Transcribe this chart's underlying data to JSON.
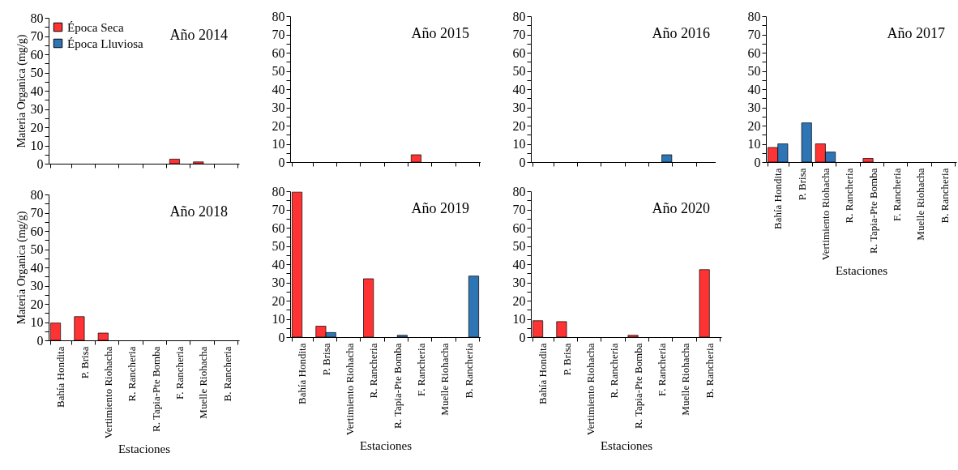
{
  "chart_data": [
    {
      "type": "bar",
      "title": "Año 2014",
      "ylabel": "Materia Organica (mg/g)",
      "tick_labels": "y",
      "legend": "top left",
      "categories": [
        null,
        null,
        null,
        null,
        null,
        null,
        null,
        null
      ],
      "series": [
        {
          "name": "Época Seca",
          "color": "#ff3333",
          "values": [
            null,
            null,
            null,
            null,
            null,
            2.5,
            1,
            null
          ]
        },
        {
          "name": "Época Lluviosa",
          "color": "#2e75b6",
          "values": [
            null,
            null,
            null,
            null,
            null,
            null,
            null,
            null
          ]
        }
      ],
      "ylim": [
        0,
        80
      ],
      "yticks": [
        0,
        {
          "value": 5,
          "label": null
        },
        10,
        {
          "value": 15,
          "label": null
        },
        20,
        {
          "value": 25,
          "label": null
        },
        30,
        {
          "value": 35,
          "label": null
        },
        40,
        {
          "value": 45,
          "label": null
        },
        50,
        {
          "value": 55,
          "label": null
        },
        60,
        {
          "value": 65,
          "label": null
        },
        70,
        {
          "value": 75,
          "label": null
        },
        80
      ]
    },
    {
      "type": "bar",
      "title": "Año 2015",
      "tick_labels": "y",
      "categories": [
        null,
        null,
        null,
        null,
        null,
        null,
        null,
        null
      ],
      "series": [
        {
          "color": "#ff3333",
          "values": [
            null,
            null,
            null,
            null,
            null,
            4,
            null,
            null
          ]
        },
        {
          "color": "#2e75b6",
          "values": [
            null,
            null,
            null,
            null,
            null,
            null,
            null,
            null
          ]
        }
      ],
      "ylim": [
        0,
        80
      ],
      "yticks": [
        0,
        {
          "value": 5,
          "label": null
        },
        10,
        {
          "value": 15,
          "label": null
        },
        20,
        {
          "value": 25,
          "label": null
        },
        30,
        {
          "value": 35,
          "label": null
        },
        40,
        {
          "value": 45,
          "label": null
        },
        50,
        {
          "value": 55,
          "label": null
        },
        60,
        {
          "value": 65,
          "label": null
        },
        70,
        {
          "value": 75,
          "label": null
        },
        80
      ]
    },
    {
      "type": "bar",
      "title": "Año 2016",
      "tick_labels": "y",
      "categories": [
        null,
        null,
        null,
        null,
        null,
        null,
        null,
        null
      ],
      "series": [
        {
          "color": "#ff3333",
          "values": [
            null,
            null,
            null,
            null,
            null,
            null,
            null,
            null
          ]
        },
        {
          "color": "#2e75b6",
          "values": [
            null,
            null,
            null,
            null,
            null,
            4,
            null,
            null
          ]
        }
      ],
      "ylim": [
        0,
        80
      ],
      "yticks": [
        0,
        {
          "value": 5,
          "label": null
        },
        10,
        {
          "value": 15,
          "label": null
        },
        20,
        {
          "value": 25,
          "label": null
        },
        30,
        {
          "value": 35,
          "label": null
        },
        40,
        {
          "value": 45,
          "label": null
        },
        50,
        {
          "value": 55,
          "label": null
        },
        60,
        {
          "value": 65,
          "label": null
        },
        70,
        {
          "value": 75,
          "label": null
        },
        80
      ]
    },
    {
      "type": "bar",
      "title": "Año 2017",
      "xlabel": "Estaciones",
      "categories": [
        "Bahía Hondita",
        "P. Brisa",
        "Vertimiento Riohacha",
        "R. Rancheria",
        "R. Tapia-Pte Bomba",
        "F. Rancheria",
        "Muelle Riohacha",
        "B. Rancheria"
      ],
      "series": [
        {
          "color": "#ff3333",
          "values": [
            8,
            null,
            10,
            null,
            2,
            null,
            null,
            null
          ]
        },
        {
          "color": "#2e75b6",
          "values": [
            10,
            21.5,
            5.5,
            null,
            null,
            null,
            null,
            null
          ]
        }
      ],
      "ylim": [
        0,
        80
      ],
      "yticks": [
        0,
        {
          "value": 5,
          "label": null
        },
        10,
        {
          "value": 15,
          "label": null
        },
        20,
        {
          "value": 25,
          "label": null
        },
        30,
        {
          "value": 35,
          "label": null
        },
        40,
        {
          "value": 45,
          "label": null
        },
        50,
        {
          "value": 55,
          "label": null
        },
        60,
        {
          "value": 65,
          "label": null
        },
        70,
        {
          "value": 75,
          "label": null
        },
        80
      ]
    },
    {
      "type": "bar",
      "title": "Año 2018",
      "xlabel": "Estaciones",
      "ylabel": "Materia Organica (mg/g)",
      "categories": [
        "Bahía Hondita",
        "P. Brisa",
        "Vertimiento Riohacha",
        "R. Rancheria",
        "R. Tapia-Pte Bomba",
        "F. Rancheria",
        "Muelle Riohacha",
        "B. Rancheria"
      ],
      "series": [
        {
          "color": "#ff3333",
          "values": [
            9.5,
            13,
            4,
            null,
            null,
            null,
            null,
            null
          ]
        },
        {
          "color": "#2e75b6",
          "values": [
            null,
            null,
            null,
            null,
            null,
            null,
            null,
            null
          ]
        }
      ],
      "ylim": [
        0,
        80
      ],
      "yticks": [
        0,
        {
          "value": 5,
          "label": null
        },
        10,
        {
          "value": 15,
          "label": null
        },
        20,
        {
          "value": 25,
          "label": null
        },
        30,
        {
          "value": 35,
          "label": null
        },
        40,
        {
          "value": 45,
          "label": null
        },
        50,
        {
          "value": 55,
          "label": null
        },
        60,
        {
          "value": 65,
          "label": null
        },
        70,
        {
          "value": 75,
          "label": null
        },
        80
      ]
    },
    {
      "type": "bar",
      "title": "Año 2019",
      "xlabel": "Estaciones",
      "categories": [
        "Bahía Hondita",
        "P. Brisa",
        "Vertimiento Riohacha",
        "R. Rancheria",
        "R. Tapia-Pte Bomba",
        "F. Rancheria",
        "Muelle Riohacha",
        "B. Rancheria"
      ],
      "series": [
        {
          "color": "#ff3333",
          "values": [
            79.5,
            6,
            null,
            32,
            null,
            null,
            null,
            null
          ]
        },
        {
          "color": "#2e75b6",
          "values": [
            null,
            2.5,
            null,
            null,
            1,
            null,
            null,
            33.5
          ]
        }
      ],
      "ylim": [
        0,
        80
      ],
      "yticks": [
        0,
        {
          "value": 5,
          "label": null
        },
        10,
        {
          "value": 15,
          "label": null
        },
        20,
        {
          "value": 25,
          "label": null
        },
        30,
        {
          "value": 35,
          "label": null
        },
        40,
        {
          "value": 45,
          "label": null
        },
        50,
        {
          "value": 55,
          "label": null
        },
        60,
        {
          "value": 65,
          "label": null
        },
        70,
        {
          "value": 75,
          "label": null
        },
        80
      ]
    },
    {
      "type": "bar",
      "title": "Año 2020",
      "xlabel": "Estaciones",
      "categories": [
        "Bahía Hondita",
        "P. Brisa",
        "Vertimiento Riohacha",
        "R. Rancheria",
        "R. Tapia-Pte Bomba",
        "F. Rancheria",
        "Muelle Riohacha",
        "B. Rancheria"
      ],
      "series": [
        {
          "color": "#ff3333",
          "values": [
            9,
            8.5,
            null,
            null,
            1,
            null,
            null,
            37
          ]
        },
        {
          "color": "#2e75b6",
          "values": [
            null,
            null,
            null,
            null,
            null,
            null,
            null,
            null
          ]
        }
      ],
      "ylim": [
        0,
        80
      ],
      "yticks": [
        0,
        {
          "value": 5,
          "label": null
        },
        10,
        {
          "value": 15,
          "label": null
        },
        20,
        {
          "value": 25,
          "label": null
        },
        30,
        {
          "value": 35,
          "label": null
        },
        40,
        {
          "value": 45,
          "label": null
        },
        50,
        {
          "value": 55,
          "label": null
        },
        60,
        {
          "value": 65,
          "label": null
        },
        70,
        {
          "value": 75,
          "label": null
        },
        80
      ]
    }
  ]
}
